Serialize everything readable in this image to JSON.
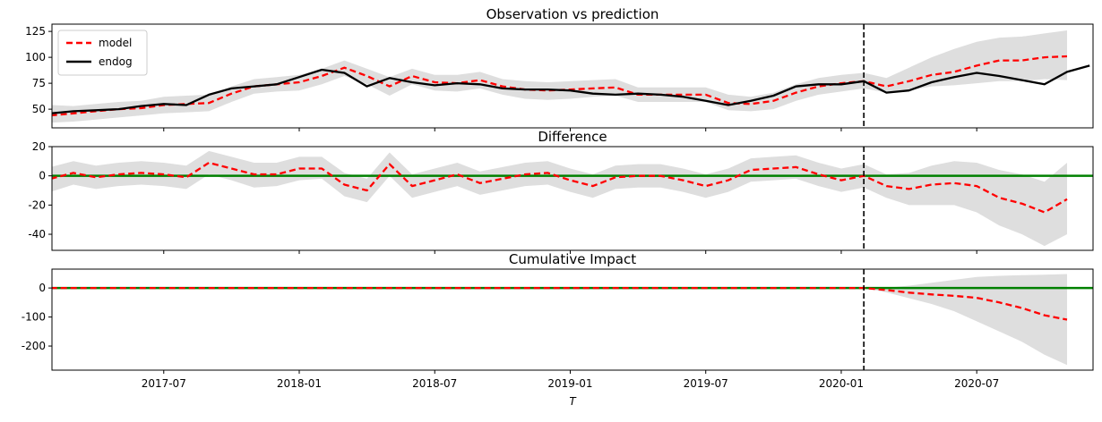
{
  "chart_data": [
    {
      "type": "line",
      "title": "Observation vs prediction",
      "ylim": [
        32,
        132
      ],
      "yticks": [
        50,
        75,
        100,
        125
      ],
      "legend": {
        "placement": "top-left",
        "entries": [
          "model",
          "endog"
        ]
      },
      "colors": {
        "model": "#ff0000",
        "endog": "#000000",
        "band": "#dedede",
        "intervention": "#000000"
      },
      "intervention_date": "2020-02",
      "series": [
        {
          "name": "model",
          "x": [
            "2017-02",
            "2017-03",
            "2017-04",
            "2017-05",
            "2017-06",
            "2017-07",
            "2017-08",
            "2017-09",
            "2017-10",
            "2017-11",
            "2017-12",
            "2018-01",
            "2018-02",
            "2018-03",
            "2018-04",
            "2018-05",
            "2018-06",
            "2018-07",
            "2018-08",
            "2018-09",
            "2018-10",
            "2018-11",
            "2018-12",
            "2019-01",
            "2019-02",
            "2019-03",
            "2019-04",
            "2019-05",
            "2019-06",
            "2019-07",
            "2019-08",
            "2019-09",
            "2019-10",
            "2019-11",
            "2019-12",
            "2020-01",
            "2020-02",
            "2020-03",
            "2020-04",
            "2020-05",
            "2020-06",
            "2020-07",
            "2020-08",
            "2020-09",
            "2020-10",
            "2020-11"
          ],
          "values": [
            44,
            46,
            48,
            50,
            51,
            54,
            55,
            56,
            65,
            72,
            74,
            76,
            82,
            90,
            82,
            72,
            82,
            76,
            75,
            78,
            72,
            69,
            68,
            69,
            70,
            71,
            64,
            64,
            64,
            64,
            56,
            55,
            58,
            66,
            72,
            75,
            77,
            72,
            77,
            83,
            86,
            92,
            97,
            97,
            100,
            101
          ],
          "lower": [
            37,
            38,
            40,
            42,
            44,
            46,
            47,
            48,
            57,
            65,
            67,
            68,
            74,
            82,
            74,
            63,
            74,
            68,
            67,
            70,
            64,
            60,
            59,
            60,
            62,
            63,
            57,
            57,
            57,
            57,
            49,
            48,
            50,
            58,
            64,
            67,
            70,
            66,
            68,
            72,
            73,
            75,
            77,
            77,
            79,
            78
          ],
          "upper": [
            54,
            53,
            55,
            57,
            58,
            62,
            63,
            64,
            72,
            79,
            81,
            83,
            89,
            97,
            89,
            81,
            89,
            83,
            83,
            86,
            79,
            77,
            76,
            77,
            78,
            79,
            71,
            71,
            71,
            71,
            64,
            62,
            66,
            74,
            80,
            83,
            85,
            80,
            90,
            100,
            108,
            115,
            119,
            120,
            123,
            126
          ]
        },
        {
          "name": "endog",
          "x": [
            "2017-02",
            "2017-03",
            "2017-04",
            "2017-05",
            "2017-06",
            "2017-07",
            "2017-08",
            "2017-09",
            "2017-10",
            "2017-11",
            "2017-12",
            "2018-01",
            "2018-02",
            "2018-03",
            "2018-04",
            "2018-05",
            "2018-06",
            "2018-07",
            "2018-08",
            "2018-09",
            "2018-10",
            "2018-11",
            "2018-12",
            "2019-01",
            "2019-02",
            "2019-03",
            "2019-04",
            "2019-05",
            "2019-06",
            "2019-07",
            "2019-08",
            "2019-09",
            "2019-10",
            "2019-11",
            "2019-12",
            "2020-01",
            "2020-02",
            "2020-03",
            "2020-04",
            "2020-05",
            "2020-06",
            "2020-07",
            "2020-08",
            "2020-09",
            "2020-10",
            "2020-11",
            "2020-12"
          ],
          "values": [
            46,
            48,
            49,
            50,
            53,
            55,
            54,
            64,
            70,
            72,
            74,
            81,
            88,
            85,
            72,
            80,
            76,
            73,
            75,
            74,
            70,
            69,
            69,
            68,
            65,
            64,
            65,
            64,
            62,
            58,
            54,
            58,
            63,
            72,
            74,
            74,
            77,
            66,
            68,
            76,
            81,
            85,
            82,
            78,
            74,
            86,
            92
          ]
        }
      ]
    },
    {
      "type": "line",
      "title": "Difference",
      "ylim": [
        -51,
        20
      ],
      "yticks": [
        20,
        0,
        -20,
        -40
      ],
      "colors": {
        "difference": "#ff0000",
        "zero": "#008000",
        "band": "#dedede"
      },
      "zero_line": 0,
      "series": [
        {
          "name": "difference",
          "x": [
            "2017-02",
            "2017-03",
            "2017-04",
            "2017-05",
            "2017-06",
            "2017-07",
            "2017-08",
            "2017-09",
            "2017-10",
            "2017-11",
            "2017-12",
            "2018-01",
            "2018-02",
            "2018-03",
            "2018-04",
            "2018-05",
            "2018-06",
            "2018-07",
            "2018-08",
            "2018-09",
            "2018-10",
            "2018-11",
            "2018-12",
            "2019-01",
            "2019-02",
            "2019-03",
            "2019-04",
            "2019-05",
            "2019-06",
            "2019-07",
            "2019-08",
            "2019-09",
            "2019-10",
            "2019-11",
            "2019-12",
            "2020-01",
            "2020-02",
            "2020-03",
            "2020-04",
            "2020-05",
            "2020-06",
            "2020-07",
            "2020-08",
            "2020-09",
            "2020-10",
            "2020-11"
          ],
          "values": [
            -2,
            2,
            -1,
            1,
            2,
            1,
            -1,
            9,
            5,
            1,
            1,
            5,
            5,
            -6,
            -10,
            8,
            -7,
            -3,
            1,
            -5,
            -2,
            1,
            2,
            -3,
            -7,
            -1,
            0,
            0,
            -3,
            -7,
            -3,
            4,
            5,
            6,
            1,
            -3,
            0,
            -7,
            -9,
            -6,
            -5,
            -7,
            -15,
            -19,
            -25,
            -16
          ],
          "lower": [
            -11,
            -6,
            -9,
            -7,
            -6,
            -7,
            -9,
            1,
            -3,
            -8,
            -7,
            -3,
            -2,
            -14,
            -18,
            0,
            -15,
            -11,
            -7,
            -13,
            -10,
            -7,
            -6,
            -11,
            -15,
            -9,
            -8,
            -8,
            -11,
            -15,
            -11,
            -4,
            -3,
            -2,
            -7,
            -11,
            -8,
            -15,
            -20,
            -20,
            -20,
            -25,
            -34,
            -40,
            -48,
            -40
          ],
          "upper": [
            6,
            10,
            7,
            9,
            10,
            9,
            7,
            17,
            13,
            9,
            9,
            13,
            13,
            2,
            -2,
            16,
            1,
            5,
            9,
            3,
            6,
            9,
            10,
            5,
            1,
            7,
            8,
            8,
            5,
            1,
            5,
            12,
            13,
            14,
            9,
            5,
            8,
            1,
            2,
            7,
            10,
            9,
            4,
            1,
            -4,
            9
          ]
        }
      ]
    },
    {
      "type": "line",
      "title": "Cumulative Impact",
      "xlabel": "T",
      "ylim": [
        -283,
        65
      ],
      "yticks": [
        0,
        -100,
        -200
      ],
      "xticks": [
        "2017-07",
        "2018-01",
        "2018-07",
        "2019-01",
        "2019-07",
        "2020-01",
        "2020-07"
      ],
      "colors": {
        "cumulative": "#ff0000",
        "zero": "#008000",
        "band": "#dedede"
      },
      "zero_line": 0,
      "series": [
        {
          "name": "cumulative",
          "x": [
            "2017-02",
            "2017-03",
            "2017-04",
            "2017-05",
            "2017-06",
            "2017-07",
            "2017-08",
            "2017-09",
            "2017-10",
            "2017-11",
            "2017-12",
            "2018-01",
            "2018-02",
            "2018-03",
            "2018-04",
            "2018-05",
            "2018-06",
            "2018-07",
            "2018-08",
            "2018-09",
            "2018-10",
            "2018-11",
            "2018-12",
            "2019-01",
            "2019-02",
            "2019-03",
            "2019-04",
            "2019-05",
            "2019-06",
            "2019-07",
            "2019-08",
            "2019-09",
            "2019-10",
            "2019-11",
            "2019-12",
            "2020-01",
            "2020-02",
            "2020-03",
            "2020-04",
            "2020-05",
            "2020-06",
            "2020-07",
            "2020-08",
            "2020-09",
            "2020-10",
            "2020-11"
          ],
          "values": [
            0,
            0,
            0,
            0,
            0,
            0,
            0,
            0,
            0,
            0,
            0,
            0,
            0,
            0,
            0,
            0,
            0,
            0,
            0,
            0,
            0,
            0,
            0,
            0,
            0,
            0,
            0,
            0,
            0,
            0,
            0,
            0,
            0,
            0,
            0,
            0,
            0,
            -7,
            -16,
            -22,
            -27,
            -34,
            -50,
            -69,
            -94,
            -109
          ],
          "lower": [
            0,
            0,
            0,
            0,
            0,
            0,
            0,
            0,
            0,
            0,
            0,
            0,
            0,
            0,
            0,
            0,
            0,
            0,
            0,
            0,
            0,
            0,
            0,
            0,
            0,
            0,
            0,
            0,
            0,
            0,
            0,
            0,
            0,
            0,
            0,
            0,
            0,
            -15,
            -35,
            -55,
            -80,
            -115,
            -150,
            -185,
            -230,
            -265
          ],
          "upper": [
            0,
            0,
            0,
            0,
            0,
            0,
            0,
            0,
            0,
            0,
            0,
            0,
            0,
            0,
            0,
            0,
            0,
            0,
            0,
            0,
            0,
            0,
            0,
            0,
            0,
            0,
            0,
            0,
            0,
            0,
            0,
            0,
            0,
            0,
            0,
            0,
            0,
            1,
            8,
            18,
            28,
            38,
            42,
            44,
            46,
            48
          ]
        }
      ]
    }
  ]
}
